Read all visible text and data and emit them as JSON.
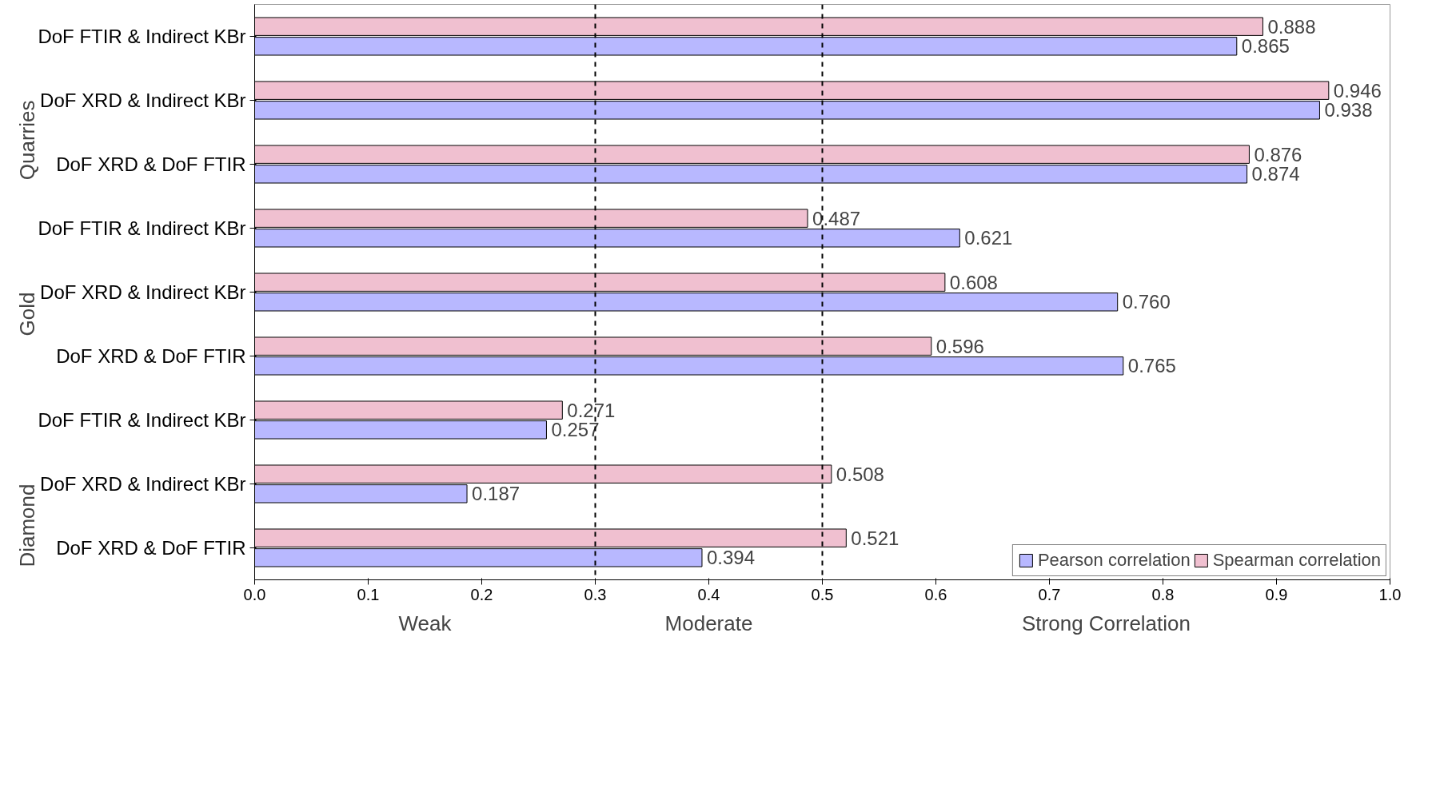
{
  "chart_data": {
    "type": "bar",
    "orientation": "horizontal",
    "categories": [
      "DoF FTIR & Indirect KBr",
      "DoF XRD & Indirect KBr",
      "DoF XRD & DoF FTIR",
      "DoF FTIR & Indirect KBr",
      "DoF XRD & Indirect KBr",
      "DoF XRD & DoF FTIR",
      "DoF FTIR & Indirect KBr",
      "DoF XRD & Indirect KBr",
      "DoF XRD & DoF FTIR"
    ],
    "series": [
      {
        "name": "Pearson correlation",
        "color": "#b8b8ff",
        "values": [
          0.865,
          0.938,
          0.874,
          0.621,
          0.76,
          0.765,
          0.257,
          0.187,
          0.394
        ],
        "value_labels": [
          "0.865",
          "0.938",
          "0.874",
          "0.621",
          "0.760",
          "0.765",
          "0.257",
          "0.187",
          "0.394"
        ]
      },
      {
        "name": "Spearman correlation",
        "color": "#f0c0d0",
        "values": [
          0.888,
          0.946,
          0.876,
          0.487,
          0.608,
          0.596,
          0.271,
          0.508,
          0.521
        ],
        "value_labels": [
          "0.888",
          "0.946",
          "0.876",
          "0.487",
          "0.608",
          "0.596",
          "0.271",
          "0.508",
          "0.521"
        ]
      }
    ],
    "xlim": [
      0,
      1
    ],
    "xticks": [
      {
        "value": 0,
        "label": "0.0"
      },
      0.1,
      0.2,
      0.3,
      0.4,
      0.5,
      0.6,
      0.7,
      0.8,
      0.9,
      {
        "value": 1,
        "label": "1.0"
      }
    ],
    "ref_lines": [
      {
        "axis": "x",
        "value": 0.3,
        "color": "#000000",
        "line_style": "dashed"
      },
      {
        "axis": "x",
        "value": 0.5,
        "color": "#000000",
        "line_style": "dashed"
      }
    ],
    "annotations": [
      "Quarries",
      "Gold",
      "Diamond",
      "Weak",
      "Moderate",
      "Strong Correlation"
    ],
    "legend": "bottom right",
    "grid": false
  }
}
